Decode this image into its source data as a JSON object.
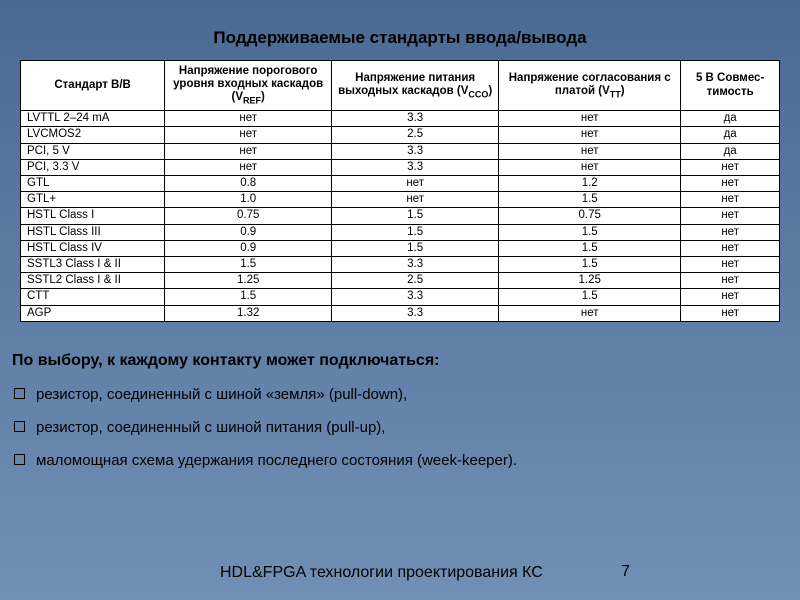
{
  "slide": {
    "title": "Поддерживаемые стандарты ввода/вывода",
    "intro": "По выбору, к каждому контакту может подключаться:",
    "bullets": [
      "резистор, соединенный с шиной «земля» (pull-down),",
      "резистор, соединенный с шиной питания (pull-up),",
      "маломощная схема удержания последнего состояния (week-keeper)."
    ],
    "footer_text": "HDL&FPGA технологии проектирования КС",
    "page_number": "7"
  },
  "table": {
    "col_widths": [
      "19%",
      "22%",
      "22%",
      "24%",
      "13%"
    ],
    "header_fontsize": 11.5,
    "body_fontsize": 11.5,
    "border_color": "#000000",
    "background": "#ffffff",
    "columns": [
      {
        "label": "Стандарт В/В",
        "sub": ""
      },
      {
        "label": "Напряжение порогового уровня входных каскадов (V",
        "sub": "REF",
        "tail": ")"
      },
      {
        "label": "Напряжение питания выход­ных каскадов (V",
        "sub": "CCO",
        "tail": ")"
      },
      {
        "label": "Напряжение согласования с платой (V",
        "sub": "TT",
        "tail": ")"
      },
      {
        "label": "5 В Совмес­тимость",
        "sub": ""
      }
    ],
    "rows": [
      [
        "LVTTL 2–24 mA",
        "нет",
        "3.3",
        "нет",
        "да"
      ],
      [
        "LVCMOS2",
        "нет",
        "2.5",
        "нет",
        "да"
      ],
      [
        "PCI, 5 V",
        "нет",
        "3.3",
        "нет",
        "да"
      ],
      [
        "PCI, 3.3 V",
        "нет",
        "3.3",
        "нет",
        "нет"
      ],
      [
        "GTL",
        "0.8",
        "нет",
        "1.2",
        "нет"
      ],
      [
        "GTL+",
        "1.0",
        "нет",
        "1.5",
        "нет"
      ],
      [
        "HSTL Class I",
        "0.75",
        "1.5",
        "0.75",
        "нет"
      ],
      [
        "HSTL Class III",
        "0.9",
        "1.5",
        "1.5",
        "нет"
      ],
      [
        "HSTL Class IV",
        "0.9",
        "1.5",
        "1.5",
        "нет"
      ],
      [
        "SSTL3 Class I & II",
        "1.5",
        "3.3",
        "1.5",
        "нет"
      ],
      [
        "SSTL2 Class I & II",
        "1.25",
        "2.5",
        "1.25",
        "нет"
      ],
      [
        "CTT",
        "1.5",
        "3.3",
        "1.5",
        "нет"
      ],
      [
        "AGP",
        "1.32",
        "3.3",
        "нет",
        "нет"
      ]
    ]
  }
}
